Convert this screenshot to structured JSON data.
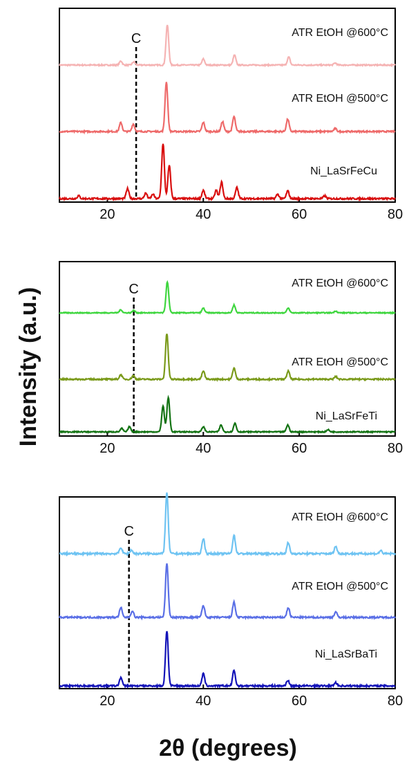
{
  "figure": {
    "ylabel": "Intensity (a.u.)",
    "xlabel": "2θ (degrees)"
  },
  "chart_data": [
    {
      "type": "line",
      "panel": "top",
      "xlim": [
        10,
        80
      ],
      "ticks": [
        20,
        40,
        60,
        80
      ],
      "ref_line": {
        "x": 26,
        "label": "C"
      },
      "series": [
        {
          "name": "ATR EtOH @600°C",
          "color": "#f5b3b3",
          "peaks": [
            [
              22.8,
              0.1
            ],
            [
              25.5,
              0.08
            ],
            [
              32.5,
              1.0
            ],
            [
              40.0,
              0.15
            ],
            [
              46.5,
              0.25
            ],
            [
              57.8,
              0.2
            ],
            [
              67.5,
              0.05
            ]
          ]
        },
        {
          "name": "ATR EtOH @500°C",
          "color": "#ee6a6a",
          "peaks": [
            [
              22.8,
              0.18
            ],
            [
              25.4,
              0.15
            ],
            [
              32.3,
              1.0
            ],
            [
              40.0,
              0.18
            ],
            [
              44.0,
              0.2
            ],
            [
              46.4,
              0.3
            ],
            [
              57.6,
              0.25
            ],
            [
              67.5,
              0.06
            ]
          ]
        },
        {
          "name": "Ni_LaSrFeCu",
          "color": "#d90f0f",
          "peaks": [
            [
              14.0,
              0.05
            ],
            [
              24.2,
              0.18
            ],
            [
              28.0,
              0.1
            ],
            [
              29.5,
              0.08
            ],
            [
              31.6,
              1.0
            ],
            [
              32.9,
              0.6
            ],
            [
              40.0,
              0.15
            ],
            [
              42.7,
              0.15
            ],
            [
              43.8,
              0.3
            ],
            [
              47.0,
              0.2
            ],
            [
              55.5,
              0.08
            ],
            [
              57.6,
              0.14
            ],
            [
              65.3,
              0.05
            ]
          ]
        }
      ]
    },
    {
      "type": "line",
      "panel": "middle",
      "xlim": [
        10,
        80
      ],
      "ticks": [
        20,
        40,
        60,
        80
      ],
      "ref_line": {
        "x": 25.5,
        "label": "C"
      },
      "series": [
        {
          "name": "ATR EtOH @600°C",
          "color": "#3fd63f",
          "peaks": [
            [
              22.8,
              0.1
            ],
            [
              25.5,
              0.08
            ],
            [
              32.5,
              1.0
            ],
            [
              40.0,
              0.15
            ],
            [
              46.4,
              0.25
            ],
            [
              57.7,
              0.15
            ],
            [
              67.6,
              0.06
            ]
          ]
        },
        {
          "name": "ATR EtOH @500°C",
          "color": "#7a9a1a",
          "peaks": [
            [
              22.8,
              0.1
            ],
            [
              25.4,
              0.08
            ],
            [
              32.4,
              1.0
            ],
            [
              40.0,
              0.18
            ],
            [
              46.4,
              0.25
            ],
            [
              57.7,
              0.18
            ],
            [
              67.6,
              0.06
            ]
          ]
        },
        {
          "name": "Ni_LaSrFeTi",
          "color": "#137313",
          "peaks": [
            [
              23.0,
              0.1
            ],
            [
              24.6,
              0.15
            ],
            [
              31.6,
              0.75
            ],
            [
              32.7,
              1.0
            ],
            [
              40.0,
              0.15
            ],
            [
              43.7,
              0.2
            ],
            [
              46.6,
              0.25
            ],
            [
              57.6,
              0.2
            ],
            [
              66.0,
              0.06
            ]
          ]
        }
      ]
    },
    {
      "type": "line",
      "panel": "bottom",
      "xlim": [
        10,
        80
      ],
      "ticks": [
        20,
        40,
        60,
        80
      ],
      "ref_line": {
        "x": 24.5,
        "label": "C"
      },
      "series": [
        {
          "name": "ATR EtOH @600°C",
          "color": "#6ec3f2",
          "peaks": [
            [
              22.8,
              0.1
            ],
            [
              25.0,
              0.06
            ],
            [
              32.4,
              1.0
            ],
            [
              40.0,
              0.25
            ],
            [
              46.4,
              0.3
            ],
            [
              57.7,
              0.18
            ],
            [
              67.6,
              0.12
            ],
            [
              77.0,
              0.05
            ]
          ]
        },
        {
          "name": "ATR EtOH @500°C",
          "color": "#5a6fe6",
          "peaks": [
            [
              22.8,
              0.18
            ],
            [
              25.2,
              0.12
            ],
            [
              32.4,
              1.0
            ],
            [
              40.0,
              0.22
            ],
            [
              46.4,
              0.28
            ],
            [
              57.7,
              0.18
            ],
            [
              67.6,
              0.1
            ]
          ]
        },
        {
          "name": "Ni_LaSrBaTi",
          "color": "#1313b8",
          "peaks": [
            [
              22.8,
              0.15
            ],
            [
              32.4,
              1.0
            ],
            [
              40.0,
              0.22
            ],
            [
              46.4,
              0.28
            ],
            [
              57.6,
              0.1
            ],
            [
              67.6,
              0.06
            ]
          ]
        }
      ]
    }
  ]
}
